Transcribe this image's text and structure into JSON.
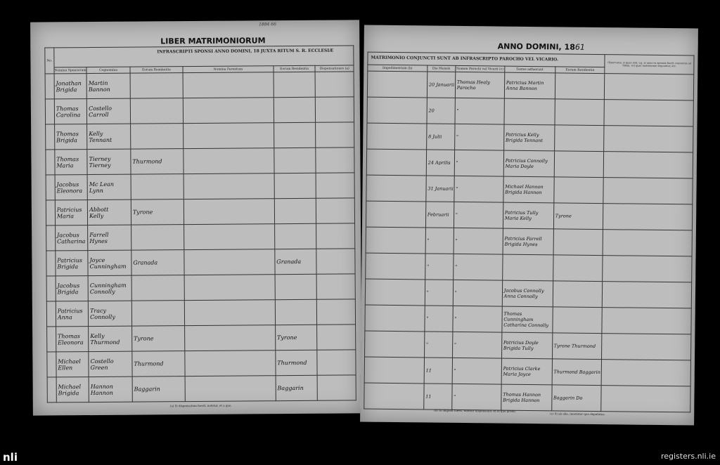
{
  "left_page": {
    "title": "LIBER MATRIMONIORUM",
    "pencil_note": "1884 66",
    "banner": "INFRASCRIPTI SPONSI ANNO DOMINI, 18 / JUXTA RITUM S. R. ECCLESIÆ",
    "col_no": "No.",
    "columns": [
      "Nomina Sponsorum",
      "Cognomina",
      "Eorum Residentia",
      "Nomina Parentum",
      "Eorum Residentia",
      "Dispensationes (a)"
    ],
    "footnote": "(a) Si dispensatum fuerit, notetur, et a quo.",
    "rows": [
      [
        "Jonathan / Brigida",
        "Martin / Bannon",
        "",
        "",
        "",
        ""
      ],
      [
        "Thomas / Carolina",
        "Costello / Carroll",
        "",
        "",
        "",
        ""
      ],
      [
        "Thomas / Brigida",
        "Kelly / Tennant",
        "",
        "",
        "",
        ""
      ],
      [
        "Thomas / Maria",
        "Tierney / Tierney",
        "Thurmond",
        "",
        "",
        ""
      ],
      [
        "Jacobus / Eleonora",
        "Mc Lean / Lynn",
        "",
        "",
        "",
        ""
      ],
      [
        "Patricius / Maria",
        "Abbott / Kelly",
        "Tyrone",
        "",
        "",
        ""
      ],
      [
        "Jacobus / Catharina",
        "Farrell / Hynes",
        "",
        "",
        "",
        ""
      ],
      [
        "Patricius / Brigida",
        "Joyce / Cunningham",
        "Granada",
        "",
        "Granada",
        ""
      ],
      [
        "Jacobus / Brigida",
        "Cunningham / Connolly",
        "",
        "",
        "",
        ""
      ],
      [
        "Patricius / Anna",
        "Tracy / Connolly",
        "",
        "",
        "",
        ""
      ],
      [
        "Thomas / Eleonora",
        "Kelly / Thurmond",
        "Tyrone",
        "",
        "Tyrone",
        ""
      ],
      [
        "Michael / Ellen",
        "Costello / Green",
        "Thurmond",
        "",
        "Thurmond",
        ""
      ],
      [
        "Michael / Brigida",
        "Hannon / Hannon",
        "Baggarin",
        "",
        "Baggarin",
        ""
      ]
    ]
  },
  "right_page": {
    "title_prefix": "ANNO DOMINI, 18",
    "title_year": "61",
    "banner": "MATRIMONIO CONJUNCTI SUNT AB INFRASCRIPTO PAROCHO VEL VICARIO.",
    "columns": [
      "Impedimentum (b)",
      "Die Mensis",
      "Nomen Parochi vel Vicarii (c)",
      "Testes adfuerunt",
      "Eorum Residentia",
      "Observatio, si quae sint, v.g. si unus ex sponsis fuerit conversus ad fidem, vel quae matrimonio sequuntur, etc."
    ],
    "footnotes": [
      "(b) Si aliquod fuerit, notetur dispensatio, et in quo gradu.",
      "(c) Si ab alio, innotatur quo deputatus."
    ],
    "rows": [
      [
        "",
        "20 Januarii",
        "Thomas Healy Parocho",
        "Patricius Martin / Anna Bannon",
        "",
        ""
      ],
      [
        "",
        "20",
        "\"",
        "",
        "",
        ""
      ],
      [
        "",
        "8 Julii",
        "\"",
        "Patricius Kelly / Brigida Tennant",
        "",
        ""
      ],
      [
        "",
        "24 Aprilis",
        "\"",
        "Patricius Connolly / Maria Doyle",
        "",
        ""
      ],
      [
        "",
        "31 Januarii",
        "\"",
        "Michael Hannon / Brigida Hannon",
        "",
        ""
      ],
      [
        "",
        "Februarii",
        "\"",
        "Patricius Tully / Maria Kelly",
        "Tyrone",
        ""
      ],
      [
        "",
        "\"",
        "\"",
        "Patricius Farrell / Brigida Hynes",
        "",
        ""
      ],
      [
        "",
        "\"",
        "\"",
        "",
        "",
        ""
      ],
      [
        "",
        "\"",
        "\"",
        "Jacobus Connolly / Anna Connolly",
        "",
        ""
      ],
      [
        "",
        "\"",
        "\"",
        "Thomas Cunningham / Catharina Connolly",
        "",
        ""
      ],
      [
        "",
        "\"",
        "\"",
        "Patricius Doyle / Brigida Tully",
        "Tyrone / Thurmond",
        ""
      ],
      [
        "",
        "11",
        "\"",
        "Patricius Clarke / Maria Joyce",
        "Thurmond / Baggarin",
        ""
      ],
      [
        "",
        "11",
        "\"",
        "Thomas Hannon / Brigida Hannon",
        "Baggarin / Do",
        ""
      ]
    ]
  },
  "watermark": {
    "logo": "nli",
    "site": "registers.nli.ie"
  },
  "colors": {
    "paper": "#bdbdbd",
    "background": "#000000",
    "ink": "#111111"
  }
}
